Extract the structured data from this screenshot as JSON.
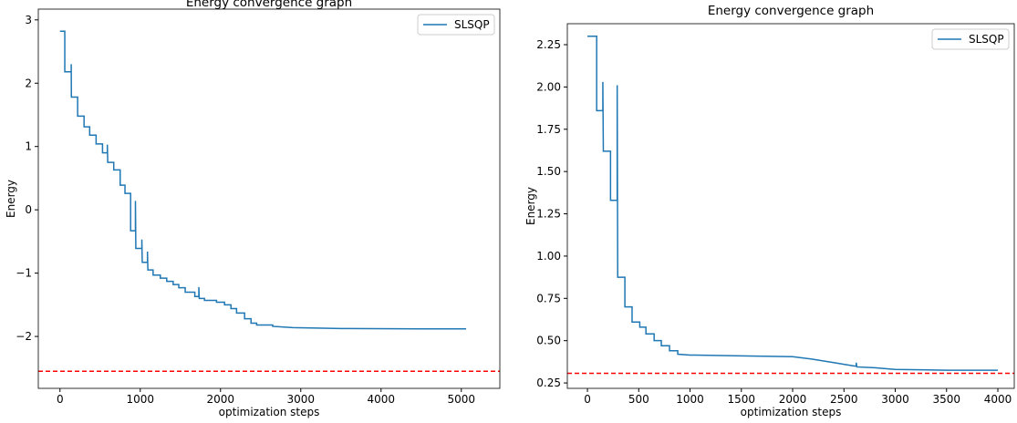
{
  "chart_data": [
    {
      "type": "line",
      "title": "Energy convergence graph",
      "xlabel": "optimization steps",
      "ylabel": "Energy",
      "xlim": [
        -270,
        5480
      ],
      "ylim": [
        -2.82,
        3.17
      ],
      "xticks": [
        0,
        1000,
        2000,
        3000,
        4000,
        5000
      ],
      "yticks": [
        {
          "value": -2,
          "label": "−2"
        },
        {
          "value": -1,
          "label": "−1"
        },
        0,
        1,
        2,
        3
      ],
      "legend": "upper right",
      "hline": {
        "value": -2.55,
        "color": "#ff0000"
      },
      "x": [
        0,
        60,
        60,
        130,
        130,
        140,
        140,
        142,
        220,
        220,
        300,
        300,
        370,
        370,
        450,
        450,
        530,
        530,
        590,
        590,
        595,
        670,
        670,
        750,
        750,
        810,
        810,
        880,
        880,
        940,
        940,
        945,
        1020,
        1020,
        1025,
        1090,
        1090,
        1095,
        1160,
        1160,
        1250,
        1250,
        1330,
        1330,
        1410,
        1410,
        1480,
        1480,
        1560,
        1560,
        1680,
        1680,
        1730,
        1730,
        1735,
        1800,
        1800,
        1950,
        1950,
        2050,
        2050,
        2130,
        2130,
        2200,
        2200,
        2300,
        2300,
        2380,
        2380,
        2450,
        2450,
        2650,
        2650,
        2900,
        3500,
        4500,
        5060
      ],
      "series": [
        {
          "name": "SLSQP",
          "color": "#1f77b4",
          "values": [
            2.82,
            2.82,
            2.18,
            2.18,
            2.18,
            2.18,
            2.3,
            1.78,
            1.78,
            1.48,
            1.48,
            1.31,
            1.31,
            1.18,
            1.18,
            1.04,
            1.04,
            0.9,
            0.9,
            1.03,
            0.75,
            0.75,
            0.63,
            0.63,
            0.39,
            0.39,
            0.26,
            0.26,
            -0.33,
            -0.33,
            0.14,
            -0.61,
            -0.61,
            -0.47,
            -0.83,
            -0.83,
            -0.66,
            -0.95,
            -0.95,
            -1.03,
            -1.03,
            -1.08,
            -1.08,
            -1.13,
            -1.13,
            -1.18,
            -1.18,
            -1.23,
            -1.23,
            -1.3,
            -1.3,
            -1.37,
            -1.37,
            -1.22,
            -1.4,
            -1.4,
            -1.43,
            -1.43,
            -1.46,
            -1.46,
            -1.5,
            -1.5,
            -1.56,
            -1.56,
            -1.63,
            -1.63,
            -1.72,
            -1.72,
            -1.79,
            -1.79,
            -1.82,
            -1.82,
            -1.84,
            -1.86,
            -1.875,
            -1.88,
            -1.88
          ]
        }
      ]
    },
    {
      "type": "line",
      "title": "Energy convergence graph",
      "xlabel": "optimization steps",
      "ylabel": "Energy",
      "xlim": [
        -196,
        4160
      ],
      "ylim": [
        0.218,
        2.374
      ],
      "xticks": [
        0,
        500,
        1000,
        1500,
        2000,
        2500,
        3000,
        3500,
        4000
      ],
      "yticks": [
        0.25,
        {
          "value": 0.5,
          "label": "0.50"
        },
        0.75,
        {
          "value": 1,
          "label": "1.00"
        },
        1.25,
        {
          "value": 1.5,
          "label": "1.50"
        },
        1.75,
        {
          "value": 2,
          "label": "2.00"
        },
        2.25
      ],
      "legend": "upper right",
      "hline": {
        "value": 0.307,
        "color": "#ff0000"
      },
      "x": [
        0,
        90,
        90,
        150,
        150,
        155,
        225,
        225,
        290,
        290,
        295,
        365,
        365,
        435,
        435,
        510,
        510,
        570,
        570,
        650,
        650,
        720,
        720,
        800,
        800,
        880,
        880,
        1000,
        1500,
        2000,
        2200,
        2400,
        2600,
        2620,
        2620,
        2625,
        2800,
        3000,
        3500,
        4000
      ],
      "series": [
        {
          "name": "SLSQP",
          "color": "#1f77b4",
          "values": [
            2.3,
            2.3,
            1.86,
            1.86,
            2.03,
            1.62,
            1.62,
            1.33,
            1.33,
            2.01,
            0.875,
            0.875,
            0.7,
            0.7,
            0.61,
            0.61,
            0.58,
            0.58,
            0.54,
            0.54,
            0.5,
            0.5,
            0.47,
            0.47,
            0.44,
            0.44,
            0.42,
            0.415,
            0.41,
            0.405,
            0.39,
            0.37,
            0.35,
            0.35,
            0.37,
            0.345,
            0.34,
            0.33,
            0.325,
            0.325
          ]
        }
      ]
    }
  ]
}
